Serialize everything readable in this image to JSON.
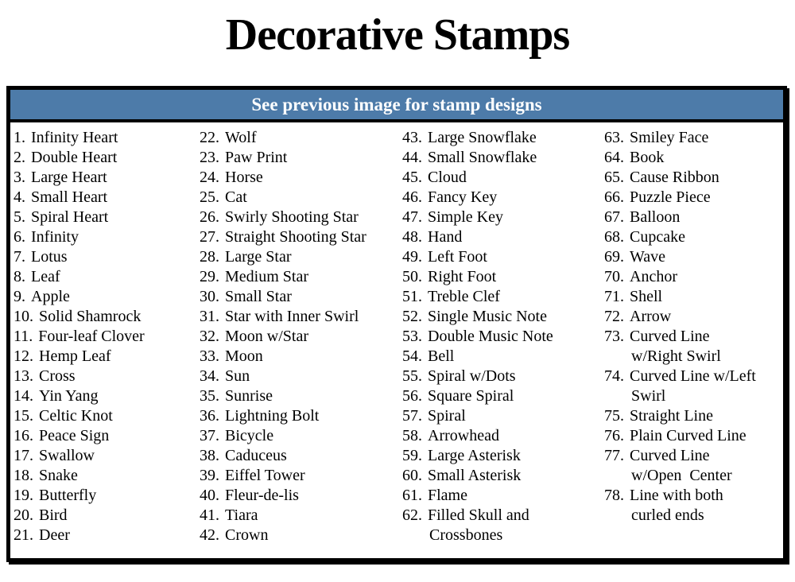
{
  "title": "Decorative Stamps",
  "banner": {
    "text": "See previous image for stamp designs"
  },
  "colors": {
    "banner_bg": "#4d7ba9",
    "banner_text": "#ffffff",
    "frame_border": "#000000"
  },
  "columns": [
    {
      "items": [
        {
          "n": "1.",
          "label": "Infinity Heart"
        },
        {
          "n": "2.",
          "label": "Double Heart"
        },
        {
          "n": "3.",
          "label": "Large Heart"
        },
        {
          "n": "4.",
          "label": "Small Heart"
        },
        {
          "n": "5.",
          "label": "Spiral Heart"
        },
        {
          "n": "6.",
          "label": "Infinity"
        },
        {
          "n": "7.",
          "label": "Lotus"
        },
        {
          "n": "8.",
          "label": "Leaf"
        },
        {
          "n": "9.",
          "label": "Apple"
        },
        {
          "n": "10.",
          "label": "Solid Shamrock"
        },
        {
          "n": "11.",
          "label": "Four-leaf Clover"
        },
        {
          "n": "12.",
          "label": "Hemp Leaf"
        },
        {
          "n": "13.",
          "label": "Cross"
        },
        {
          "n": "14.",
          "label": "Yin Yang"
        },
        {
          "n": "15.",
          "label": "Celtic Knot"
        },
        {
          "n": "16.",
          "label": "Peace Sign"
        },
        {
          "n": "17.",
          "label": "Swallow"
        },
        {
          "n": "18.",
          "label": "Snake"
        },
        {
          "n": "19.",
          "label": "Butterfly"
        },
        {
          "n": "20.",
          "label": "Bird"
        },
        {
          "n": "21.",
          "label": "Deer"
        }
      ]
    },
    {
      "items": [
        {
          "n": "22.",
          "label": "Wolf"
        },
        {
          "n": "23.",
          "label": "Paw Print"
        },
        {
          "n": "24.",
          "label": "Horse"
        },
        {
          "n": "25.",
          "label": "Cat"
        },
        {
          "n": "26.",
          "label": "Swirly Shooting Star"
        },
        {
          "n": "27.",
          "label": "Straight Shooting Star"
        },
        {
          "n": "28.",
          "label": "Large Star"
        },
        {
          "n": "29.",
          "label": "Medium Star"
        },
        {
          "n": "30.",
          "label": "Small Star"
        },
        {
          "n": "31.",
          "label": "Star with Inner Swirl"
        },
        {
          "n": "32.",
          "label": "Moon w/Star"
        },
        {
          "n": "33.",
          "label": "Moon"
        },
        {
          "n": "34.",
          "label": "Sun"
        },
        {
          "n": "35.",
          "label": "Sunrise"
        },
        {
          "n": "36.",
          "label": "Lightning Bolt"
        },
        {
          "n": "37.",
          "label": "Bicycle"
        },
        {
          "n": "38.",
          "label": "Caduceus"
        },
        {
          "n": "39.",
          "label": "Eiffel Tower"
        },
        {
          "n": "40.",
          "label": "Fleur-de-lis"
        },
        {
          "n": "41.",
          "label": "Tiara"
        },
        {
          "n": "42.",
          "label": "Crown"
        }
      ]
    },
    {
      "items": [
        {
          "n": "43.",
          "label": "Large Snowflake"
        },
        {
          "n": "44.",
          "label": "Small Snowflake"
        },
        {
          "n": "45.",
          "label": "Cloud"
        },
        {
          "n": "46.",
          "label": "Fancy Key"
        },
        {
          "n": "47.",
          "label": "Simple Key"
        },
        {
          "n": "48.",
          "label": "Hand"
        },
        {
          "n": "49.",
          "label": "Left Foot"
        },
        {
          "n": "50.",
          "label": "Right Foot"
        },
        {
          "n": "51.",
          "label": "Treble Clef"
        },
        {
          "n": "52.",
          "label": "Single Music Note"
        },
        {
          "n": "53.",
          "label": "Double Music Note"
        },
        {
          "n": "54.",
          "label": "Bell"
        },
        {
          "n": "55.",
          "label": "Spiral w/Dots"
        },
        {
          "n": "56.",
          "label": "Square Spiral"
        },
        {
          "n": "57.",
          "label": "Spiral"
        },
        {
          "n": "58.",
          "label": "Arrowhead"
        },
        {
          "n": "59.",
          "label": "Large Asterisk"
        },
        {
          "n": "60.",
          "label": "Small Asterisk"
        },
        {
          "n": "61.",
          "label": "Flame"
        },
        {
          "n": "62.",
          "label": "Filled Skull and\nCrossbones"
        }
      ]
    },
    {
      "items": [
        {
          "n": "63.",
          "label": "Smiley Face"
        },
        {
          "n": "64.",
          "label": "Book"
        },
        {
          "n": "65.",
          "label": "Cause Ribbon"
        },
        {
          "n": "66.",
          "label": "Puzzle Piece"
        },
        {
          "n": "67.",
          "label": "Balloon"
        },
        {
          "n": "68.",
          "label": "Cupcake"
        },
        {
          "n": "69.",
          "label": "Wave"
        },
        {
          "n": "70.",
          "label": "Anchor"
        },
        {
          "n": "71.",
          "label": "Shell"
        },
        {
          "n": "72.",
          "label": "Arrow"
        },
        {
          "n": "73.",
          "label": "Curved Line\nw/Right Swirl"
        },
        {
          "n": "74.",
          "label": "Curved Line w/Left\nSwirl"
        },
        {
          "n": "75.",
          "label": "Straight Line"
        },
        {
          "n": "76.",
          "label": "Plain Curved Line"
        },
        {
          "n": "77.",
          "label": "Curved Line\nw/Open  Center"
        },
        {
          "n": "78.",
          "label": "Line with both\ncurled ends"
        }
      ]
    }
  ]
}
